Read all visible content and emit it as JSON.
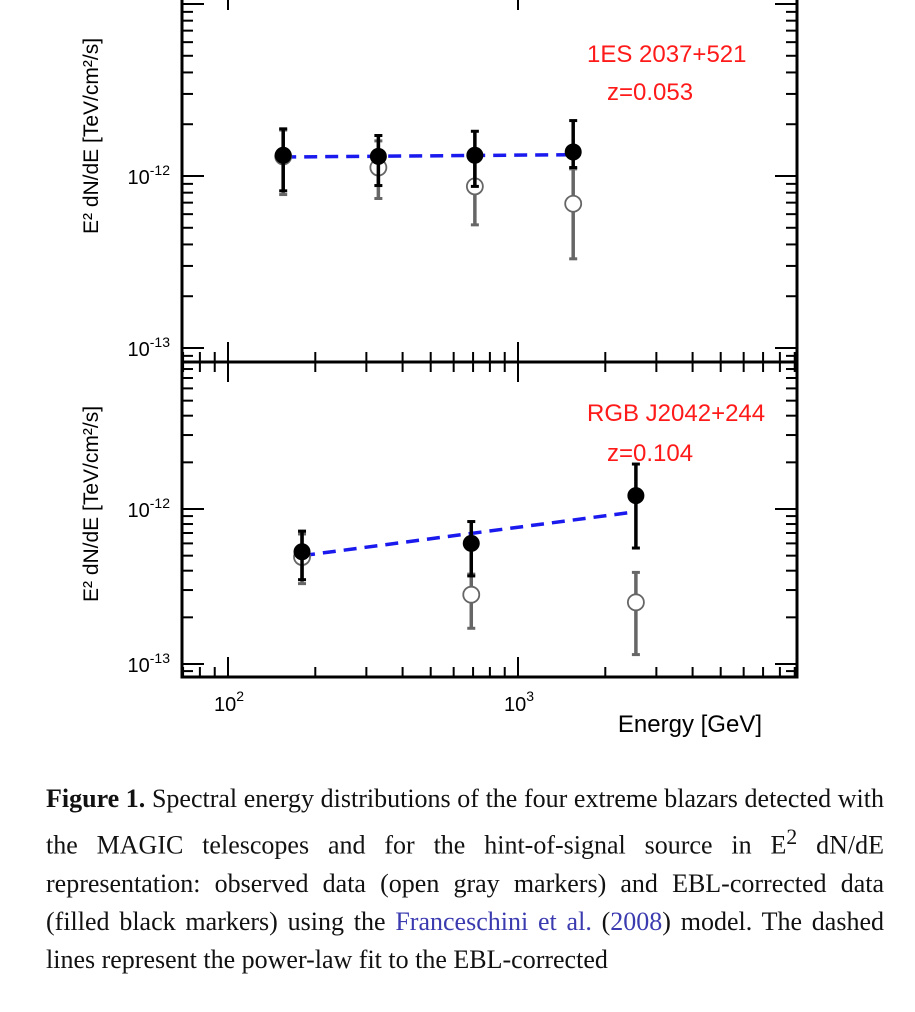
{
  "chart_data": [
    {
      "type": "scatter",
      "name_label": "1ES 2037+521",
      "redshift_label": "z=0.053",
      "ylabel": "E² dN/dE [TeV/cm²/s]",
      "yscale": "log",
      "ylim": [
        1e-13,
        1e-11
      ],
      "xscale": "log",
      "xlim": [
        70,
        8000
      ],
      "y_ticks": [
        {
          "value": 1e-12,
          "base": "10",
          "exp": "-12"
        },
        {
          "value": 1e-13,
          "base": "10",
          "exp": "-13"
        }
      ],
      "series": [
        {
          "role": "observed",
          "points": [
            {
              "x": 155,
              "y": 1.3e-12,
              "ylo": 7.8e-13,
              "yhi": 1.85e-12
            },
            {
              "x": 330,
              "y": 1.12e-12,
              "ylo": 7.4e-13,
              "yhi": 1.6e-12
            },
            {
              "x": 710,
              "y": 8.7e-13,
              "ylo": 5.2e-13,
              "yhi": 1.35e-12
            },
            {
              "x": 1550,
              "y": 6.9e-13,
              "ylo": 3.3e-13,
              "yhi": 1.1e-12
            }
          ]
        },
        {
          "role": "ebl_corrected",
          "points": [
            {
              "x": 155,
              "y": 1.32e-12,
              "ylo": 8.2e-13,
              "yhi": 1.88e-12
            },
            {
              "x": 330,
              "y": 1.3e-12,
              "ylo": 8.8e-13,
              "yhi": 1.72e-12
            },
            {
              "x": 710,
              "y": 1.32e-12,
              "ylo": 8.7e-13,
              "yhi": 1.82e-12
            },
            {
              "x": 1550,
              "y": 1.38e-12,
              "ylo": 1.12e-12,
              "yhi": 2.1e-12
            }
          ]
        }
      ],
      "fit_line": {
        "x": [
          155,
          1550
        ],
        "y": [
          1.29e-12,
          1.33e-12
        ],
        "color": "#1a1aee"
      }
    },
    {
      "type": "scatter",
      "name_label": "RGB J2042+244",
      "redshift_label": "z=0.104",
      "ylabel": "E² dN/dE [TeV/cm²/s]",
      "yscale": "log",
      "ylim": [
        1e-13,
        1e-11
      ],
      "xscale": "log",
      "xlim": [
        70,
        8000
      ],
      "y_ticks": [
        {
          "value": 1e-12,
          "base": "10",
          "exp": "-12"
        },
        {
          "value": 1e-13,
          "base": "10",
          "exp": "-13"
        }
      ],
      "x_ticks": [
        {
          "value": 100,
          "base": "10",
          "exp": "2"
        },
        {
          "value": 1000,
          "base": "10",
          "exp": "3"
        }
      ],
      "xlabel": "Energy [GeV]",
      "series": [
        {
          "role": "observed",
          "points": [
            {
              "x": 180,
              "y": 4.9e-13,
              "ylo": 3.3e-13,
              "yhi": 6.9e-13
            },
            {
              "x": 690,
              "y": 2.8e-13,
              "ylo": 1.7e-13,
              "yhi": 3.8e-13
            },
            {
              "x": 2550,
              "y": 2.5e-13,
              "ylo": 1.15e-13,
              "yhi": 3.9e-13
            }
          ]
        },
        {
          "role": "ebl_corrected",
          "points": [
            {
              "x": 180,
              "y": 5.3e-13,
              "ylo": 3.5e-13,
              "yhi": 7.2e-13
            },
            {
              "x": 690,
              "y": 6e-13,
              "ylo": 3.7e-13,
              "yhi": 8.3e-13
            },
            {
              "x": 2550,
              "y": 1.22e-12,
              "ylo": 5.6e-13,
              "yhi": 1.95e-12
            }
          ]
        }
      ],
      "fit_line": {
        "x": [
          180,
          2550
        ],
        "y": [
          5e-13,
          9.6e-13
        ],
        "color": "#1a1aee"
      }
    }
  ],
  "caption": {
    "label": "Figure 1.",
    "text_before": " Spectral energy distributions of the four extreme blazars detected with the MAGIC telescopes and for the hint-of-signal source in E",
    "sup": "2",
    "text_middle": " dN/dE representation: observed data (open gray markers) and EBL-corrected data (filled black markers) using the ",
    "citation": "Franceschini et al.",
    "open_paren": " (",
    "year": "2008",
    "text_after": ") model. The dashed lines represent the power-law fit to the EBL-corrected"
  },
  "colors": {
    "observed": "#666666",
    "ebl_corrected": "#000000",
    "fit": "#1a1aee",
    "source_label": "#ff1a1a",
    "citation": "#3b3bb0"
  }
}
